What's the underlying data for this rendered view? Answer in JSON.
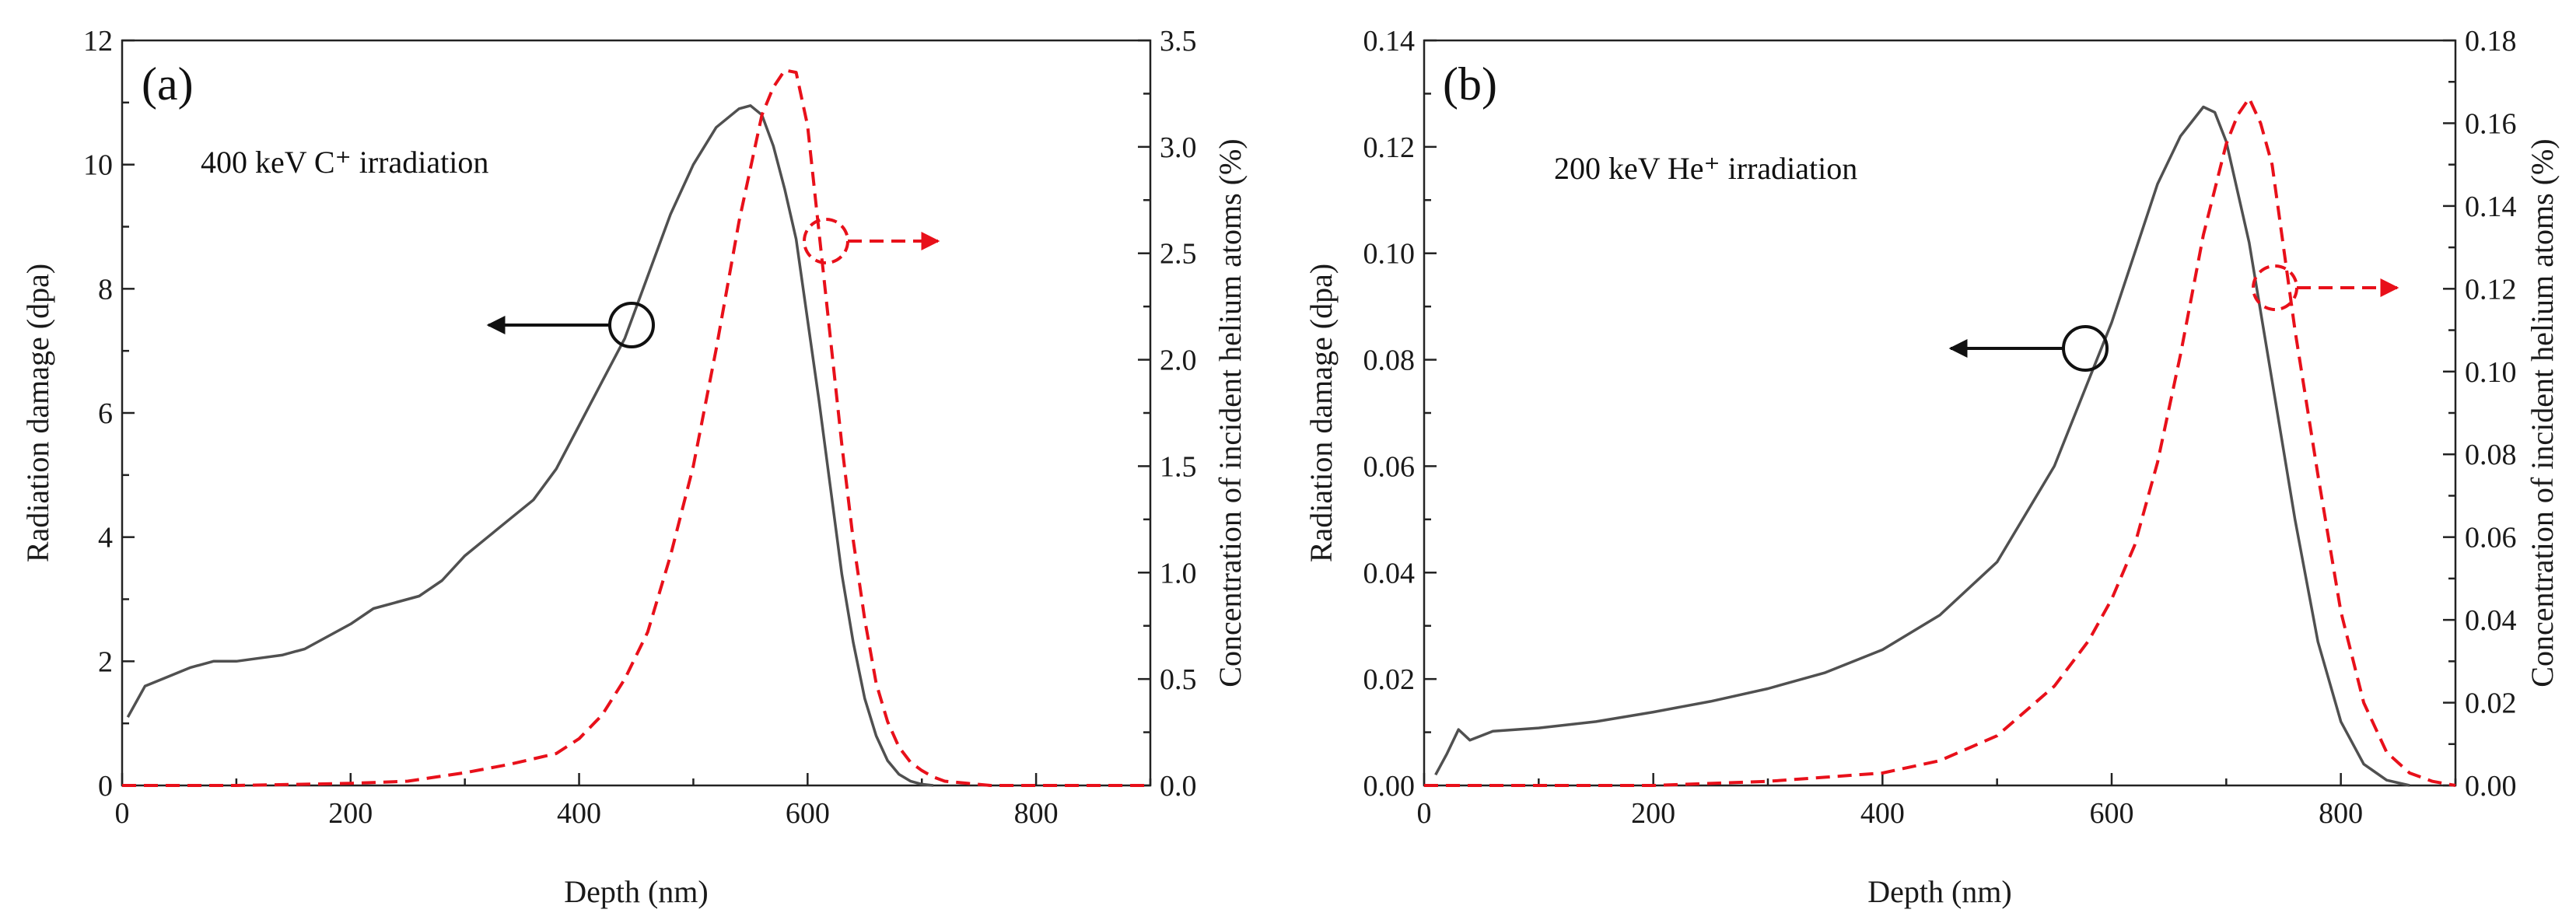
{
  "chart_data": [
    {
      "type": "line",
      "panel_label": "(a)",
      "annotation": "400 keV C⁺ irradiation",
      "xlabel": "Depth (nm)",
      "ylabel_left": "Radiation damage (dpa)",
      "ylabel_right": "Concentration of incident helium atoms (%)",
      "xlim": [
        0,
        900
      ],
      "xticks": [
        0,
        200,
        400,
        600,
        800
      ],
      "ylim_left": [
        0,
        12
      ],
      "yticks_left": [
        "0",
        "2",
        "4",
        "6",
        "8",
        "10",
        "12"
      ],
      "ylim_right": [
        0,
        3.5
      ],
      "yticks_right": [
        "0.0",
        "0.5",
        "1.0",
        "1.5",
        "2.0",
        "2.5",
        "3.0",
        "3.5"
      ],
      "series": [
        {
          "name": "Radiation damage",
          "axis": "left",
          "style": "solid",
          "color": "#505050",
          "x": [
            5,
            20,
            40,
            60,
            80,
            100,
            120,
            140,
            160,
            180,
            200,
            220,
            240,
            260,
            280,
            300,
            320,
            340,
            360,
            380,
            400,
            420,
            440,
            460,
            480,
            500,
            520,
            540,
            550,
            560,
            570,
            580,
            590,
            600,
            610,
            620,
            630,
            640,
            650,
            660,
            670,
            680,
            690,
            700,
            710
          ],
          "values": [
            1.1,
            1.6,
            1.75,
            1.9,
            2.0,
            2.0,
            2.05,
            2.1,
            2.2,
            2.4,
            2.6,
            2.85,
            2.95,
            3.05,
            3.3,
            3.7,
            4.0,
            4.3,
            4.6,
            5.1,
            5.8,
            6.5,
            7.2,
            8.2,
            9.2,
            10.0,
            10.6,
            10.9,
            10.95,
            10.8,
            10.3,
            9.6,
            8.8,
            7.5,
            6.2,
            4.8,
            3.4,
            2.3,
            1.4,
            0.8,
            0.4,
            0.18,
            0.07,
            0.02,
            0.0
          ]
        },
        {
          "name": "Concentration of incident helium atoms",
          "axis": "right",
          "style": "dashed",
          "color": "#e8101a",
          "x": [
            0,
            100,
            200,
            250,
            300,
            340,
            380,
            400,
            420,
            440,
            460,
            480,
            500,
            520,
            540,
            560,
            570,
            580,
            590,
            600,
            610,
            620,
            630,
            640,
            650,
            660,
            670,
            680,
            690,
            700,
            710,
            720,
            740,
            760,
            800,
            900
          ],
          "values": [
            0.0,
            0.0,
            0.01,
            0.02,
            0.06,
            0.1,
            0.15,
            0.22,
            0.33,
            0.5,
            0.72,
            1.08,
            1.5,
            2.05,
            2.65,
            3.15,
            3.28,
            3.36,
            3.35,
            3.1,
            2.6,
            2.1,
            1.6,
            1.15,
            0.78,
            0.48,
            0.3,
            0.18,
            0.11,
            0.07,
            0.04,
            0.02,
            0.01,
            0.0,
            0.0,
            0.0
          ]
        }
      ]
    },
    {
      "type": "line",
      "panel_label": "(b)",
      "annotation": "200 keV He⁺ irradiation",
      "xlabel": "Depth (nm)",
      "ylabel_left": "Radiation damage (dpa)",
      "ylabel_right": "Concentration of incident helium atoms (%)",
      "xlim": [
        0,
        900
      ],
      "xticks": [
        0,
        200,
        400,
        600,
        800
      ],
      "ylim_left": [
        0,
        0.14
      ],
      "yticks_left": [
        "0.00",
        "0.02",
        "0.04",
        "0.06",
        "0.08",
        "0.10",
        "0.12",
        "0.14"
      ],
      "ylim_right": [
        0,
        0.18
      ],
      "yticks_right": [
        "0.00",
        "0.02",
        "0.04",
        "0.06",
        "0.08",
        "0.10",
        "0.12",
        "0.14",
        "0.16",
        "0.18"
      ],
      "series": [
        {
          "name": "Radiation damage",
          "axis": "left",
          "style": "solid",
          "color": "#505050",
          "x": [
            10,
            20,
            30,
            40,
            60,
            100,
            150,
            200,
            250,
            300,
            350,
            400,
            450,
            500,
            550,
            600,
            620,
            640,
            660,
            680,
            690,
            700,
            720,
            740,
            760,
            780,
            800,
            820,
            840,
            860
          ],
          "values": [
            0.002,
            0.006,
            0.0105,
            0.0085,
            0.0102,
            0.0108,
            0.012,
            0.0138,
            0.0158,
            0.0182,
            0.0212,
            0.0255,
            0.032,
            0.042,
            0.06,
            0.087,
            0.1,
            0.113,
            0.122,
            0.1275,
            0.1265,
            0.121,
            0.102,
            0.076,
            0.05,
            0.027,
            0.012,
            0.004,
            0.001,
            0.0
          ]
        },
        {
          "name": "Concentration of incident helium atoms",
          "axis": "right",
          "style": "dashed",
          "color": "#e8101a",
          "x": [
            0,
            100,
            200,
            300,
            350,
            400,
            450,
            500,
            550,
            580,
            600,
            620,
            640,
            660,
            680,
            700,
            710,
            720,
            730,
            740,
            750,
            760,
            780,
            800,
            820,
            840,
            860,
            880,
            900
          ],
          "values": [
            0.0,
            0.0,
            0.0,
            0.001,
            0.002,
            0.003,
            0.006,
            0.012,
            0.024,
            0.035,
            0.045,
            0.058,
            0.078,
            0.104,
            0.133,
            0.155,
            0.162,
            0.166,
            0.16,
            0.15,
            0.13,
            0.11,
            0.075,
            0.042,
            0.02,
            0.008,
            0.003,
            0.001,
            0.0
          ]
        }
      ]
    }
  ]
}
